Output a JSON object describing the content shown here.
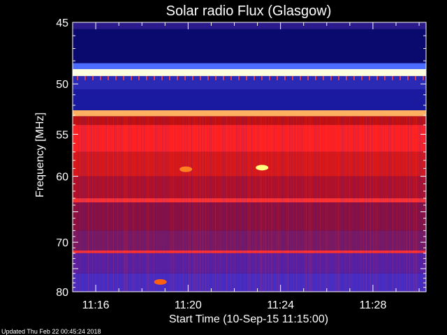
{
  "chart_data": {
    "type": "heatmap",
    "title": "Solar radio Flux (Glasgow)",
    "xlabel": "Start Time (10-Sep-15 11:15:00)",
    "ylabel": "Frequency [MHz]",
    "ylim": [
      45,
      80
    ],
    "xlim_minutes": [
      11.15,
      11.3
    ],
    "y_ticks": [
      45,
      50,
      55,
      60,
      70,
      80
    ],
    "x_ticks": [
      {
        "label": "11:16",
        "minutes": 1
      },
      {
        "label": "11:20",
        "minutes": 5
      },
      {
        "label": "11:24",
        "minutes": 9
      },
      {
        "label": "11:28",
        "minutes": 13
      }
    ],
    "x_range_minutes": [
      0,
      15.3
    ],
    "bands": [
      {
        "from": 45.0,
        "to": 45.5,
        "color": "#2a1a8c"
      },
      {
        "from": 45.5,
        "to": 48.2,
        "color": "#0a0a6e"
      },
      {
        "from": 48.2,
        "to": 48.7,
        "color": "#4a6cff"
      },
      {
        "from": 48.7,
        "to": 49.3,
        "color": "#ffffe0"
      },
      {
        "from": 49.3,
        "to": 50.5,
        "color": "#2a2ab4"
      },
      {
        "from": 50.5,
        "to": 52.5,
        "color": "#1a1aa0"
      },
      {
        "from": 52.5,
        "to": 53.1,
        "color": "#ffb060"
      },
      {
        "from": 53.1,
        "to": 54.0,
        "color": "#c01010"
      },
      {
        "from": 54.0,
        "to": 57.0,
        "color": "#ff2020"
      },
      {
        "from": 57.0,
        "to": 60.0,
        "color": "#d81818"
      },
      {
        "from": 60.0,
        "to": 63.0,
        "color": "#b01028"
      },
      {
        "from": 63.0,
        "to": 63.6,
        "color": "#ff3030"
      },
      {
        "from": 63.6,
        "to": 68.0,
        "color": "#8a1040"
      },
      {
        "from": 68.0,
        "to": 71.5,
        "color": "#7a1860"
      },
      {
        "from": 71.5,
        "to": 72.0,
        "color": "#ff3030"
      },
      {
        "from": 72.0,
        "to": 76.0,
        "color": "#5a20a0"
      },
      {
        "from": 76.0,
        "to": 80.0,
        "color": "#4a2cc0"
      }
    ],
    "hotspots": [
      {
        "minutes": 8.2,
        "freq": 58.9,
        "color": "#ffff80"
      },
      {
        "minutes": 4.9,
        "freq": 59.1,
        "color": "#ff8020"
      },
      {
        "minutes": 3.8,
        "freq": 77.8,
        "color": "#ff6010"
      }
    ]
  },
  "footer": {
    "updated": "Updated Thu Feb 22 00:45:24 2018"
  },
  "colors": {
    "background": "#000000",
    "text": "#ffffff"
  }
}
